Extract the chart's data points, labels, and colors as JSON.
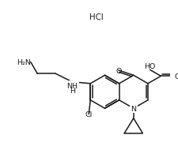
{
  "bg": "#ffffff",
  "lc": "#1a1a1a",
  "lw": 1.1,
  "fs": 6.8,
  "BL": 22,
  "hcl": "HCl",
  "N_txt": "N",
  "O_keto": "O",
  "HO_txt": "HO",
  "O_acid": "O",
  "NH_txt": "NH",
  "H_txt": "H",
  "NH2_txt": "H₂N",
  "Cl_txt": "Cl"
}
